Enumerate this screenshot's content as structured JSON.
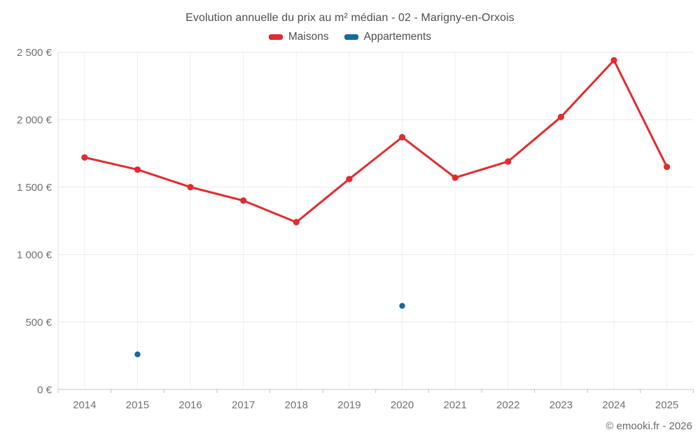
{
  "chart_data": {
    "type": "line",
    "title": "Evolution annuelle du prix au m² médian - 02 - Marigny-en-Orxois",
    "categories": [
      "2014",
      "2015",
      "2016",
      "2017",
      "2018",
      "2019",
      "2020",
      "2021",
      "2022",
      "2023",
      "2024",
      "2025"
    ],
    "series": [
      {
        "name": "Maisons",
        "type": "line",
        "color": "#e12b2f",
        "values": [
          1720,
          1630,
          1500,
          1400,
          1240,
          1560,
          1870,
          1570,
          1690,
          2020,
          2440,
          1650
        ]
      },
      {
        "name": "Appartements",
        "type": "scatter",
        "color": "#17699f",
        "values": [
          null,
          260,
          null,
          null,
          null,
          null,
          620,
          null,
          null,
          null,
          null,
          null
        ]
      }
    ],
    "xlabel": "",
    "ylabel": "",
    "ylim": [
      0,
      2500
    ],
    "ytick_step": 500,
    "ytick_labels": [
      "0 €",
      "500 €",
      "1 000 €",
      "1 500 €",
      "2 000 €",
      "2 500 €"
    ],
    "grid": true,
    "legend_position": "top"
  },
  "footer": {
    "text": "© emooki.fr - 2026"
  }
}
